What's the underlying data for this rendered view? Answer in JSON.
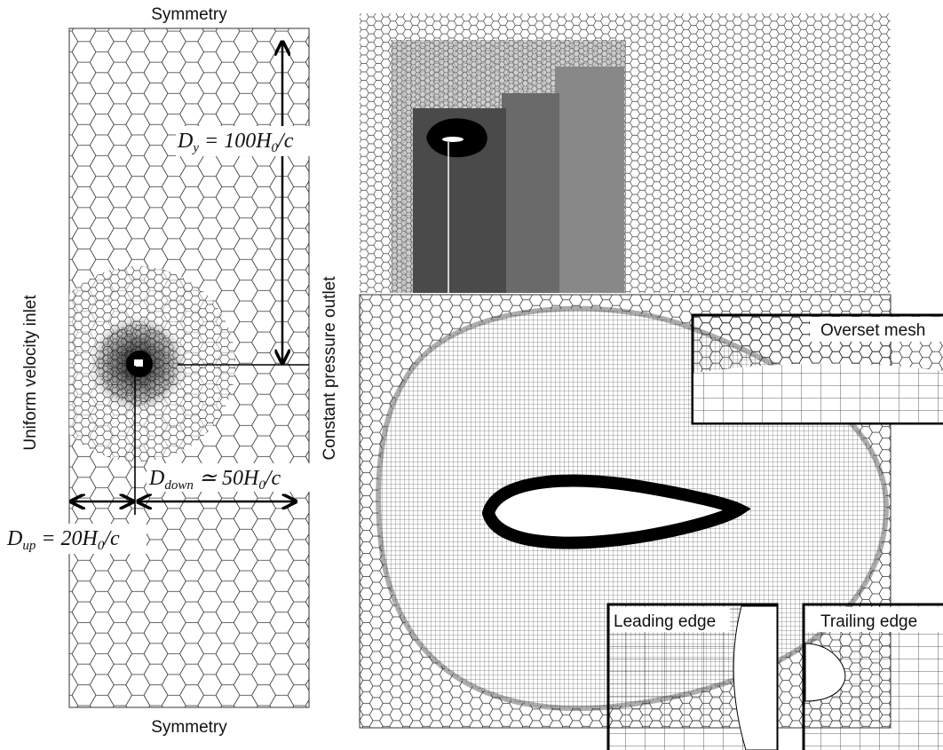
{
  "left_panel": {
    "top_label": "Symmetry",
    "bottom_label": "Symmetry",
    "inlet_label": "Uniform velocity inlet",
    "outlet_label": "Constant pressure outlet",
    "dy_label": {
      "parts": [
        {
          "text": "D"
        },
        {
          "text": "y",
          "sub": true
        },
        {
          "text": " = 100H"
        },
        {
          "text": "0",
          "sub": true
        },
        {
          "text": "/c"
        }
      ]
    },
    "ddown_label": {
      "parts": [
        {
          "text": "D"
        },
        {
          "text": "down",
          "sub": true
        },
        {
          "text": " ≃ 50H"
        },
        {
          "text": "0",
          "sub": true
        },
        {
          "text": "/c"
        }
      ]
    },
    "dup_label": {
      "parts": [
        {
          "text": "D"
        },
        {
          "text": "up",
          "sub": true
        },
        {
          "text": " = 20H"
        },
        {
          "text": "0",
          "sub": true
        },
        {
          "text": "/c"
        }
      ]
    }
  },
  "right_panel": {
    "overset_label": "Overset mesh",
    "leading_edge_label": "Leading edge",
    "trailing_edge_label": "Trailing edge"
  }
}
